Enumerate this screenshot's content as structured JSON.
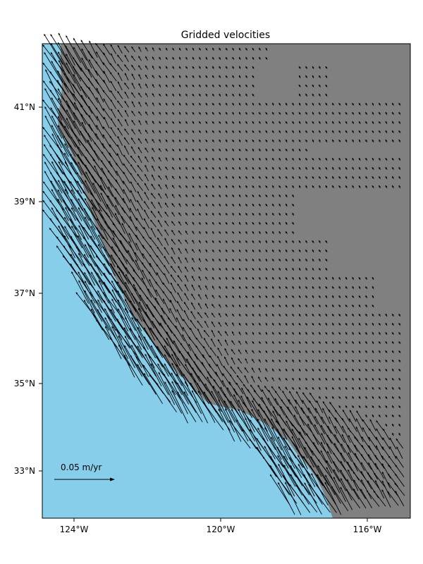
{
  "map": {
    "title": "Gridded velocities",
    "extent": {
      "lon": [
        -124.75,
        -114.8
      ],
      "lat": [
        32.0,
        42.35
      ]
    },
    "x_ticks": [
      {
        "lon": -124,
        "label": "124°W"
      },
      {
        "lon": -120,
        "label": "120°W"
      },
      {
        "lon": -116,
        "label": "116°W"
      }
    ],
    "y_ticks": [
      {
        "lat": 33,
        "label": "33°N"
      },
      {
        "lat": 35,
        "label": "35°N"
      },
      {
        "lat": 37,
        "label": "37°N"
      },
      {
        "lat": 39,
        "label": "39°N"
      },
      {
        "lat": 41,
        "label": "41°N"
      }
    ],
    "colors": {
      "ocean": "#87ceeb",
      "land": "#808080",
      "arrow": "#000000",
      "frame": "#000000"
    },
    "scale_label": "0.05 m/yr",
    "scale_value_m_per_yr": 0.05,
    "arrow_grid": {
      "lon_step": 0.18,
      "lat_step": 0.2
    }
  }
}
